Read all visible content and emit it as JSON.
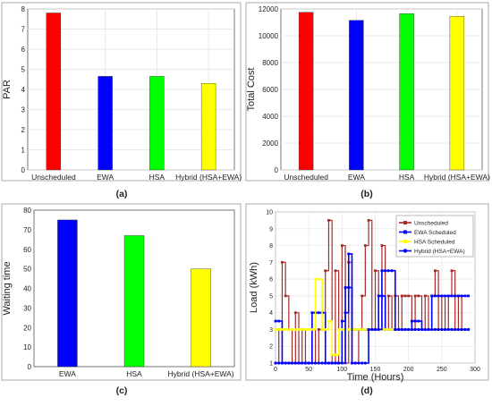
{
  "chart_data": [
    {
      "type": "bar",
      "panel_label": "(a)",
      "title": "",
      "xlabel": "",
      "ylabel": "PAR",
      "categories": [
        "Unscheduled",
        "EWA",
        "HSA",
        "Hybrid (HSA+EWA)"
      ],
      "values": [
        7.8,
        4.65,
        4.65,
        4.3
      ],
      "colors": [
        "#ff0000",
        "#0000ff",
        "#00ff00",
        "#ffff00"
      ],
      "ylim": [
        0,
        8
      ],
      "yticks": [
        0,
        1,
        2,
        3,
        4,
        5,
        6,
        7,
        8
      ],
      "grid": true
    },
    {
      "type": "bar",
      "panel_label": "(b)",
      "title": "",
      "xlabel": "",
      "ylabel": "Total Cost",
      "categories": [
        "Unscheduled",
        "EWA",
        "HSA",
        "Hybrid (HSA+EWA)"
      ],
      "values": [
        11750,
        11150,
        11650,
        11450
      ],
      "colors": [
        "#ff0000",
        "#0000ff",
        "#00ff00",
        "#ffff00"
      ],
      "ylim": [
        0,
        12000
      ],
      "yticks": [
        0,
        2000,
        4000,
        6000,
        8000,
        10000,
        12000
      ],
      "grid": true
    },
    {
      "type": "bar",
      "panel_label": "(c)",
      "title": "",
      "xlabel": "",
      "ylabel": "Waiting time",
      "categories": [
        "EWA",
        "HSA",
        "Hybrid (HSA+EWA)"
      ],
      "values": [
        75,
        67,
        50
      ],
      "colors": [
        "#0000ff",
        "#00ff00",
        "#ffff00"
      ],
      "ylim": [
        0,
        80
      ],
      "yticks": [
        0,
        10,
        20,
        30,
        40,
        50,
        60,
        70,
        80
      ],
      "grid": false
    },
    {
      "type": "line",
      "panel_label": "(d)",
      "title": "",
      "xlabel": "Time (Hours)",
      "ylabel": "Load (kWh)",
      "xlim": [
        0,
        300
      ],
      "ylim": [
        1,
        10
      ],
      "xticks": [
        0,
        50,
        100,
        150,
        200,
        250,
        300
      ],
      "yticks": [
        1,
        2,
        3,
        4,
        5,
        6,
        7,
        8,
        9,
        10
      ],
      "grid": true,
      "legend_position": "top-right",
      "series": [
        {
          "name": "Unscheduled",
          "color": "#a52a2a",
          "marker": "square",
          "x": [
            0,
            5,
            10,
            15,
            20,
            25,
            30,
            35,
            40,
            45,
            50,
            55,
            60,
            65,
            70,
            75,
            80,
            85,
            90,
            95,
            100,
            105,
            110,
            115,
            120,
            125,
            130,
            135,
            140,
            145,
            150,
            155,
            160,
            165,
            170,
            175,
            180,
            185,
            190,
            195,
            200,
            205,
            210,
            215,
            220,
            225,
            230,
            235,
            240,
            245,
            250,
            255,
            260,
            265,
            270,
            275,
            280,
            285,
            290
          ],
          "y": [
            1,
            3,
            7,
            5,
            3,
            1,
            4,
            1,
            3,
            1,
            1,
            3,
            1,
            3,
            3,
            6.5,
            9.5,
            1,
            6.5,
            1,
            8,
            1,
            7,
            1,
            1,
            3,
            5,
            8,
            9.5,
            3,
            6.5,
            3,
            8,
            3,
            5,
            3,
            5,
            3,
            5,
            5,
            5,
            3,
            5,
            5,
            3,
            5,
            3,
            5,
            6.5,
            3,
            5,
            3,
            5,
            6.5,
            3,
            5,
            3,
            3,
            3
          ]
        },
        {
          "name": "EWA Scheduled",
          "color": "#0000ff",
          "marker": "square",
          "x": [
            0,
            5,
            10,
            15,
            20,
            25,
            30,
            35,
            40,
            45,
            50,
            55,
            60,
            65,
            70,
            75,
            80,
            85,
            90,
            95,
            100,
            105,
            110,
            115,
            120,
            125,
            130,
            135,
            140,
            145,
            150,
            155,
            160,
            165,
            170,
            175,
            180,
            185,
            190,
            195,
            200,
            205,
            210,
            215,
            220,
            225,
            230,
            235,
            240,
            245,
            250,
            255,
            260,
            265,
            270,
            275,
            280,
            285,
            290
          ],
          "y": [
            3.5,
            3.5,
            1,
            1,
            1,
            1,
            1,
            1,
            1,
            1,
            1,
            4,
            4,
            4,
            4,
            1,
            1,
            1,
            1,
            1,
            3.5,
            5.5,
            5.5,
            3,
            3,
            3,
            3,
            3,
            3,
            3,
            3,
            5,
            5,
            3,
            3,
            3,
            3,
            3,
            3,
            3,
            3,
            3.5,
            3.5,
            3.5,
            3,
            3,
            3,
            5,
            5,
            5,
            5,
            5,
            5,
            5,
            5,
            5,
            5,
            5,
            5
          ]
        },
        {
          "name": "HSA Scheduled",
          "color": "#ffff00",
          "marker": "square",
          "x": [
            0,
            5,
            10,
            15,
            20,
            25,
            30,
            35,
            40,
            45,
            50,
            55,
            60,
            65,
            70,
            75,
            80,
            85,
            90,
            95,
            100,
            105,
            110,
            115,
            120,
            125,
            130,
            135,
            140,
            145,
            150,
            155,
            160,
            165,
            170,
            175,
            180,
            185,
            190,
            195,
            200,
            205,
            210,
            215,
            220,
            225,
            230,
            235,
            240,
            245,
            250,
            255,
            260,
            265,
            270,
            275,
            280,
            285,
            290
          ],
          "y": [
            3,
            3,
            3,
            3,
            3,
            3,
            3,
            3,
            3,
            3,
            3,
            3,
            6,
            6,
            3,
            3,
            3.5,
            1.5,
            1.5,
            3,
            3,
            3,
            3,
            3,
            3,
            3,
            3,
            3,
            3,
            3,
            3,
            3,
            3,
            3,
            3,
            3,
            3,
            3,
            3,
            3,
            3,
            3,
            3,
            3,
            3,
            3,
            3,
            3,
            3,
            3,
            3,
            3,
            3,
            3,
            3,
            3,
            3,
            3,
            3
          ]
        },
        {
          "name": "Hybrid (HSA+EWA)",
          "color": "#0000ff",
          "marker": "circle",
          "x": [
            0,
            5,
            10,
            15,
            20,
            25,
            30,
            35,
            40,
            45,
            50,
            55,
            60,
            65,
            70,
            75,
            80,
            85,
            90,
            95,
            100,
            105,
            110,
            115,
            120,
            125,
            130,
            135,
            140,
            145,
            150,
            155,
            160,
            165,
            170,
            175,
            180,
            185,
            190,
            195,
            200,
            205,
            210,
            215,
            220,
            225,
            230,
            235,
            240,
            245,
            250,
            255,
            260,
            265,
            270,
            275,
            280,
            285,
            290
          ],
          "y": [
            1,
            1,
            1,
            1,
            1,
            1,
            1,
            1,
            1,
            1,
            1,
            1,
            1,
            1,
            1,
            1,
            1,
            1,
            1,
            1,
            1,
            4,
            7.5,
            1,
            1,
            1,
            1,
            1,
            3,
            3,
            3,
            3,
            6.5,
            6.5,
            6.5,
            6.5,
            3,
            3,
            3,
            3,
            3,
            3,
            3,
            3,
            3,
            3,
            3,
            3,
            3,
            3,
            3,
            3,
            3,
            3,
            3,
            3,
            3,
            3,
            3
          ]
        }
      ]
    }
  ]
}
